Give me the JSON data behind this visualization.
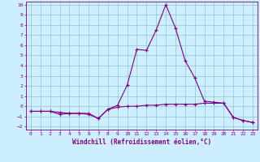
{
  "xlabel": "Windchill (Refroidissement éolien,°C)",
  "xlim": [
    -0.5,
    23.5
  ],
  "ylim": [
    -2.3,
    10.3
  ],
  "bg_color": "#cceeff",
  "line_color": "#800080",
  "grid_color": "#99cccc",
  "x_series1": [
    0,
    1,
    2,
    3,
    4,
    5,
    6,
    7,
    8,
    9,
    10,
    11,
    12,
    13,
    14,
    15,
    16,
    17,
    18,
    19,
    20,
    21,
    22,
    23
  ],
  "y_series1": [
    -0.5,
    -0.5,
    -0.5,
    -0.6,
    -0.7,
    -0.7,
    -0.7,
    -1.2,
    -0.3,
    -0.1,
    0.0,
    0.0,
    0.1,
    0.1,
    0.2,
    0.2,
    0.2,
    0.2,
    0.3,
    0.3,
    0.3,
    -1.1,
    -1.4,
    -1.6
  ],
  "x_series2": [
    0,
    1,
    2,
    3,
    4,
    5,
    6,
    7,
    8,
    9,
    10,
    11,
    12,
    13,
    14,
    15,
    16,
    17,
    18,
    19,
    20,
    21,
    22,
    23
  ],
  "y_series2": [
    -0.5,
    -0.5,
    -0.5,
    -0.8,
    -0.7,
    -0.7,
    -0.8,
    -1.2,
    -0.3,
    0.1,
    2.1,
    5.6,
    5.5,
    7.5,
    10.0,
    7.7,
    4.5,
    2.8,
    0.5,
    0.4,
    0.3,
    -1.1,
    -1.4,
    -1.6
  ],
  "yticks": [
    -2,
    -1,
    0,
    1,
    2,
    3,
    4,
    5,
    6,
    7,
    8,
    9,
    10
  ],
  "xticks": [
    0,
    1,
    2,
    3,
    4,
    5,
    6,
    7,
    8,
    9,
    10,
    11,
    12,
    13,
    14,
    15,
    16,
    17,
    18,
    19,
    20,
    21,
    22,
    23
  ],
  "marker": "+",
  "tick_fontsize": 4.5,
  "xlabel_fontsize": 5.5,
  "linewidth": 0.8,
  "markersize": 3.0
}
